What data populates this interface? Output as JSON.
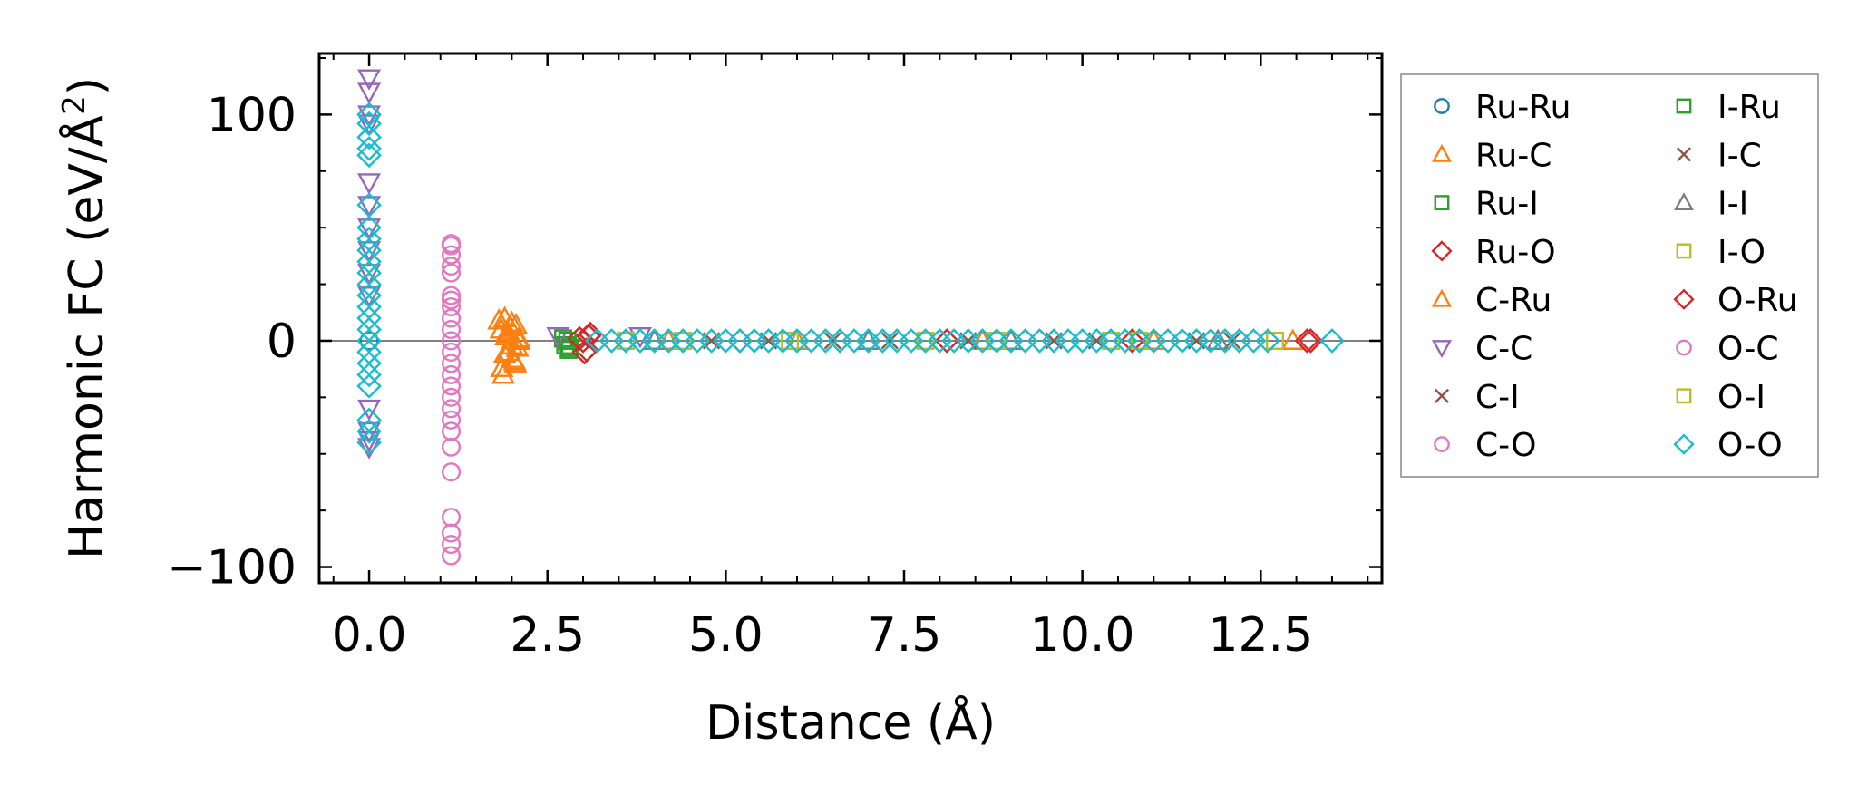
{
  "chart_data": {
    "type": "scatter",
    "title": "",
    "xlabel": "Distance (Å)",
    "ylabel_main": "Harmonic FC (eV/Å",
    "ylabel_sup": "2",
    "ylabel_close": ")",
    "xlim": [
      -0.7,
      14.2
    ],
    "ylim": [
      -107,
      127
    ],
    "xticks": [
      0.0,
      2.5,
      5.0,
      7.5,
      10.0,
      12.5
    ],
    "xtick_labels": [
      "0.0",
      "2.5",
      "5.0",
      "7.5",
      "10.0",
      "12.5"
    ],
    "yticks": [
      -100,
      0,
      100
    ],
    "ytick_labels": [
      "−100",
      "0",
      "100"
    ],
    "grid": false,
    "legend_position": "outside-right",
    "reference_line_y": 0,
    "series": [
      {
        "name": "Ru-Ru",
        "marker": "circle",
        "color": "#1f77b4",
        "filled": false,
        "x": [
          0.0
        ],
        "y": [
          0
        ]
      },
      {
        "name": "Ru-C",
        "marker": "triangle-up",
        "color": "#ff7f0e",
        "filled": false,
        "x": [
          1.85,
          1.9,
          1.95,
          2.0,
          2.05,
          1.88,
          1.92,
          1.98,
          2.02,
          2.08,
          2.1,
          1.86,
          1.94,
          2.0,
          2.06
        ],
        "y": [
          5,
          10,
          -5,
          8,
          -10,
          -15,
          2,
          6,
          -8,
          -3,
          0,
          -12,
          4,
          -2,
          7
        ]
      },
      {
        "name": "Ru-I",
        "marker": "square",
        "color": "#2ca02c",
        "filled": false,
        "x": [
          2.72,
          2.75,
          2.8
        ],
        "y": [
          1,
          -2,
          -4
        ]
      },
      {
        "name": "Ru-O",
        "marker": "diamond",
        "color": "#d62728",
        "filled": false,
        "x": [
          3.0,
          3.05,
          3.1,
          5.2,
          8.1,
          10.7,
          13.2
        ],
        "y": [
          0,
          -4,
          3,
          0,
          0,
          0,
          0
        ]
      },
      {
        "name": "C-Ru",
        "marker": "triangle-up",
        "color": "#ff7f0e",
        "filled": false,
        "x": [
          1.82,
          1.9,
          1.96,
          2.04,
          2.1,
          4.2,
          6.0,
          8.6,
          11.0,
          12.95
        ],
        "y": [
          9,
          -6,
          3,
          -9,
          1,
          0,
          0,
          0,
          0,
          0
        ]
      },
      {
        "name": "C-C",
        "marker": "triangle-down",
        "color": "#9467bd",
        "filled": false,
        "x": [
          0.0,
          0.0,
          0.0,
          0.0,
          0.0,
          0.0,
          0.0,
          0.0,
          0.0,
          0.0,
          0.0,
          0.0,
          0.0,
          0.0,
          2.65,
          3.8
        ],
        "y": [
          116,
          110,
          100,
          96,
          70,
          60,
          50,
          40,
          30,
          20,
          -30,
          -40,
          -44,
          -47,
          2,
          2
        ]
      },
      {
        "name": "C-I",
        "marker": "x",
        "color": "#8c564b",
        "filled": false,
        "x": [
          4.8,
          6.5,
          8.4,
          10.2,
          12.1
        ],
        "y": [
          0,
          0,
          0,
          0,
          0
        ]
      },
      {
        "name": "C-O",
        "marker": "circle",
        "color": "#e377c2",
        "filled": false,
        "x": [
          1.15,
          1.15,
          1.15,
          1.15,
          1.15,
          1.15,
          1.15,
          1.15,
          1.15,
          1.15,
          1.15,
          1.15,
          1.15,
          1.15,
          1.15,
          1.15,
          1.15,
          1.15,
          1.15,
          1.15
        ],
        "y": [
          43,
          38,
          33,
          20,
          15,
          10,
          5,
          0,
          -5,
          -10,
          -15,
          -20,
          -30,
          -35,
          -40,
          -47,
          -58,
          -78,
          -85,
          -95
        ]
      },
      {
        "name": "I-Ru",
        "marker": "square",
        "color": "#2ca02c",
        "filled": false,
        "x": [
          2.78,
          2.82
        ],
        "y": [
          0,
          -3
        ]
      },
      {
        "name": "I-C",
        "marker": "x",
        "color": "#8c564b",
        "filled": false,
        "x": [
          5.6,
          7.3,
          9.6,
          11.6
        ],
        "y": [
          0,
          0,
          0,
          0
        ]
      },
      {
        "name": "I-I",
        "marker": "triangle-up",
        "color": "#7f7f7f",
        "filled": false,
        "x": [
          4.0,
          7.0,
          9.0,
          11.9
        ],
        "y": [
          0,
          0,
          0,
          0
        ]
      },
      {
        "name": "I-O",
        "marker": "square",
        "color": "#bcbd22",
        "filled": false,
        "x": [
          3.6,
          5.9,
          8.8,
          10.8,
          12.7
        ],
        "y": [
          0,
          0,
          0,
          0,
          0
        ]
      },
      {
        "name": "O-Ru",
        "marker": "diamond",
        "color": "#d62728",
        "filled": false,
        "x": [
          2.95,
          3.02,
          3.08,
          13.15
        ],
        "y": [
          1,
          -5,
          2,
          0
        ]
      },
      {
        "name": "O-C",
        "marker": "circle",
        "color": "#e377c2",
        "filled": false,
        "x": [
          1.15,
          1.15,
          1.15,
          1.15,
          1.15
        ],
        "y": [
          42,
          30,
          18,
          -25,
          -90
        ]
      },
      {
        "name": "O-I",
        "marker": "square",
        "color": "#bcbd22",
        "filled": false,
        "x": [
          4.4,
          7.8,
          10.4
        ],
        "y": [
          0,
          0,
          0
        ]
      },
      {
        "name": "O-O",
        "marker": "diamond",
        "color": "#17becf",
        "filled": false,
        "x": [
          0.0,
          0.0,
          0.0,
          0.0,
          0.0,
          0.0,
          0.0,
          0.0,
          0.0,
          0.0,
          0.0,
          0.0,
          0.0,
          0.0,
          0.0,
          0.0,
          0.0,
          0.0,
          0.0,
          0.0,
          0.0,
          0.0,
          0.0,
          0.0,
          3.2,
          3.4,
          3.6,
          3.8,
          4.0,
          4.2,
          4.4,
          4.6,
          4.8,
          5.0,
          5.2,
          5.4,
          5.6,
          5.8,
          6.0,
          6.2,
          6.4,
          6.6,
          6.8,
          7.0,
          7.2,
          7.4,
          7.6,
          7.8,
          8.0,
          8.2,
          8.4,
          8.6,
          8.8,
          9.0,
          9.2,
          9.4,
          9.6,
          9.8,
          10.0,
          10.2,
          10.4,
          10.6,
          10.8,
          11.0,
          11.2,
          11.4,
          11.6,
          11.8,
          12.0,
          12.2,
          12.4,
          12.6,
          13.5
        ],
        "y": [
          100,
          96,
          90,
          85,
          82,
          60,
          50,
          45,
          40,
          35,
          30,
          25,
          20,
          15,
          10,
          5,
          0,
          -5,
          -10,
          -15,
          -20,
          -35,
          -40,
          -45,
          0,
          0,
          0,
          0,
          0,
          0,
          0,
          0,
          0,
          0,
          0,
          0,
          0,
          0,
          0,
          0,
          0,
          0,
          0,
          0,
          0,
          0,
          0,
          0,
          0,
          0,
          0,
          0,
          0,
          0,
          0,
          0,
          0,
          0,
          0,
          0,
          0,
          0,
          0,
          0,
          0,
          0,
          0,
          0,
          0,
          0,
          0,
          0,
          0
        ]
      }
    ]
  }
}
